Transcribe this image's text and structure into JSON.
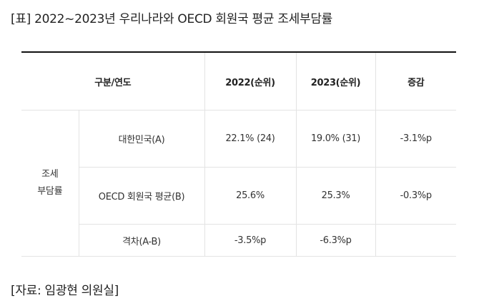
{
  "caption": "[표] 2022~2023년 우리나라와 OECD 회원국 평균 조세부담률",
  "table": {
    "headers": [
      "구분/연도",
      "2022(순위)",
      "2023(순위)",
      "증감"
    ],
    "group_label_line1": "조세",
    "group_label_line2": "부담률",
    "rows": [
      {
        "label": "대한민국(A)",
        "v2022": "22.1% (24)",
        "v2023": "19.0% (31)",
        "change": "-3.1%p"
      },
      {
        "label": "OECD 회원국 평균(B)",
        "v2022": "25.6%",
        "v2023": "25.3%",
        "change": "-0.3%p"
      },
      {
        "label": "격차(A-B)",
        "v2022": "-3.5%p",
        "v2023": "-6.3%p",
        "change": ""
      }
    ]
  },
  "source": "[자료: 임광현 의원실]"
}
